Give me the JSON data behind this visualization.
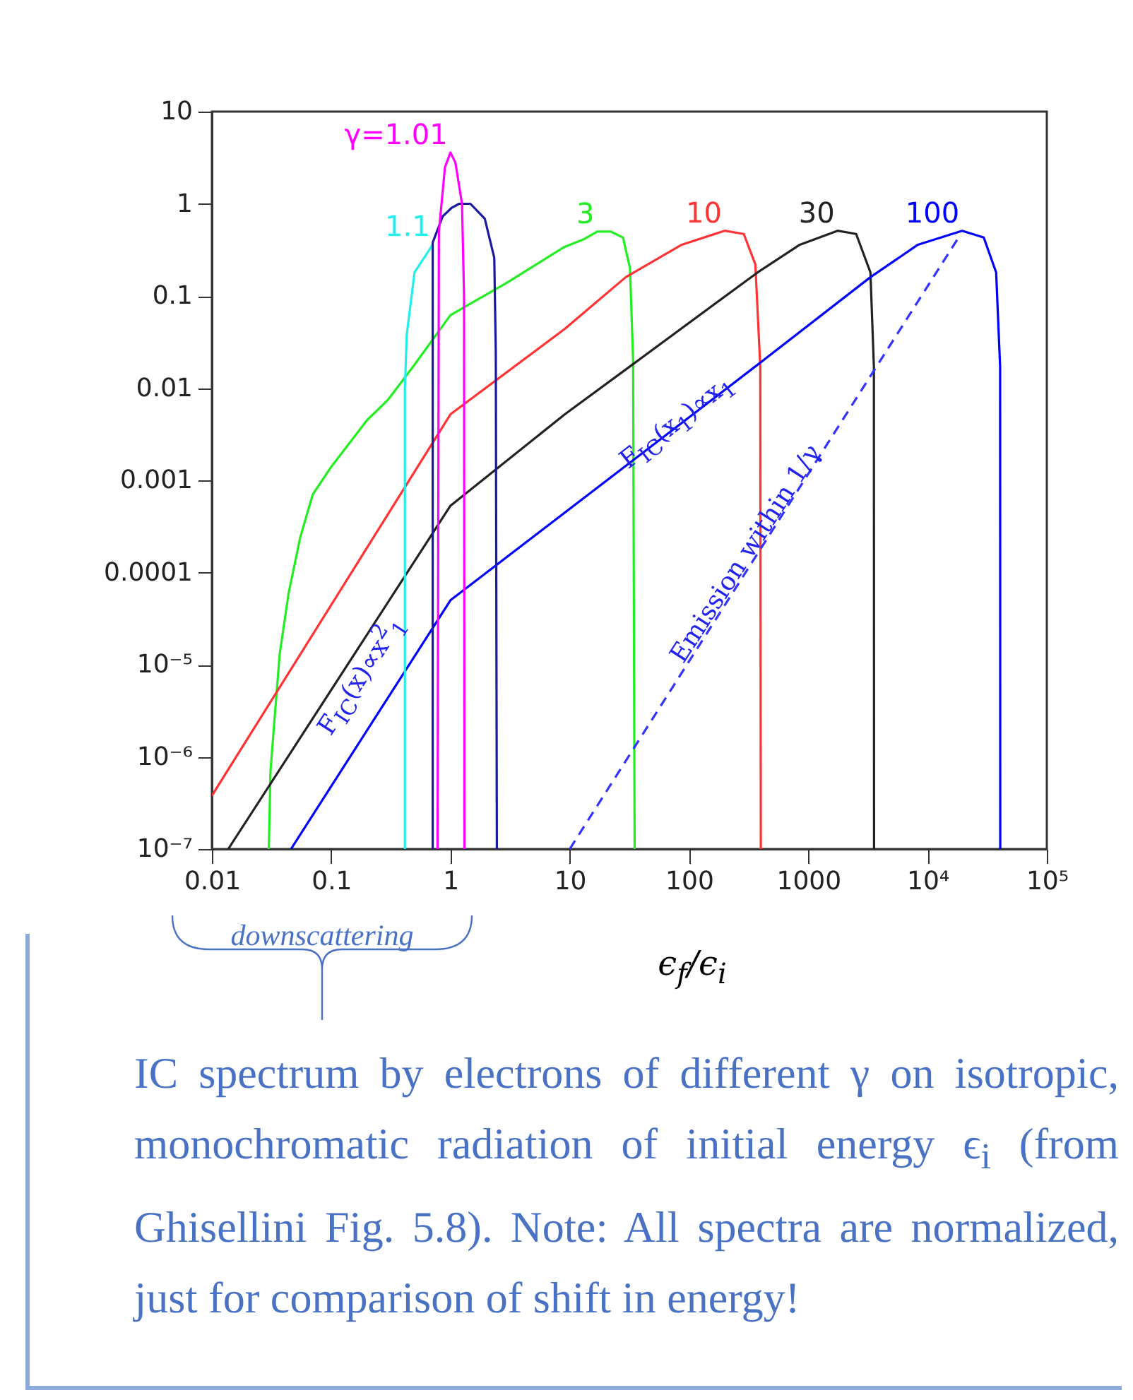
{
  "chart_data": {
    "type": "line",
    "xlabel": "ϵ$_{f}$/ϵ$_{i}$",
    "log": "xy",
    "xlim": [
      0.01,
      100000
    ],
    "ylim": [
      1e-07,
      10
    ],
    "xticks": [
      0.01,
      0.1,
      1,
      10,
      100,
      1000,
      {
        "value": 10000,
        "label": "10⁴"
      },
      {
        "value": 100000,
        "label": "10⁵"
      }
    ],
    "yticks": [
      {
        "value": 1e-07,
        "label": "10⁻⁷"
      },
      {
        "value": 1e-06,
        "label": "10⁻⁶"
      },
      {
        "value": 1e-05,
        "label": "10⁻⁵"
      },
      0.0001,
      0.001,
      0.01,
      0.1,
      1,
      10
    ],
    "series": [
      {
        "name": "3",
        "color": "#22ee22",
        "x": [
          0.03,
          0.031,
          0.033,
          0.037,
          0.044,
          0.055,
          0.07,
          0.1,
          0.2,
          0.3,
          0.5,
          1,
          3,
          9,
          13,
          17,
          22,
          28,
          32,
          34,
          35
        ],
        "values": [
          1e-07,
          7e-07,
          2e-06,
          1.3e-05,
          6e-05,
          0.00024,
          0.0007,
          0.0014,
          0.0045,
          0.0075,
          0.018,
          0.062,
          0.14,
          0.34,
          0.41,
          0.5,
          0.5,
          0.43,
          0.2,
          0.02,
          1e-07
        ]
      },
      {
        "name": "10",
        "color": "#ff3333",
        "x": [
          0.01,
          1,
          9.1,
          29.5,
          87,
          199,
          288,
          360,
          396,
          400
        ],
        "values": [
          3.8e-07,
          0.0052,
          0.044,
          0.16,
          0.36,
          0.51,
          0.47,
          0.22,
          0.017,
          1e-07
        ]
      },
      {
        "name": "30",
        "color": "#222222",
        "x": [
          0.0137,
          1,
          9.1,
          35.5,
          376,
          850,
          1760,
          2520,
          3320,
          3550,
          3560
        ],
        "values": [
          1e-07,
          0.00053,
          0.0052,
          0.019,
          0.18,
          0.36,
          0.51,
          0.47,
          0.18,
          0.017,
          1e-07
        ]
      },
      {
        "name": "100",
        "color": "#0000ff",
        "x": [
          0.046,
          1,
          398,
          3320,
          8300,
          19500,
          29600,
          37600,
          40600,
          40700
        ],
        "values": [
          1e-07,
          5e-05,
          0.019,
          0.16,
          0.36,
          0.51,
          0.43,
          0.18,
          0.017,
          1e-07
        ]
      },
      {
        "color": "#3333ff",
        "line_style": "dashed",
        "x": [
          10,
          19000
        ],
        "values": [
          1e-07,
          0.47
        ]
      },
      {
        "name": "1.1",
        "color": "#22eeee",
        "x": [
          0.415,
          0.415,
          0.43,
          0.5,
          0.71
        ],
        "values": [
          1e-07,
          0.01,
          0.038,
          0.18,
          0.36
        ]
      },
      {
        "color": "#1a1aa0",
        "x": [
          0.71,
          0.71,
          0.86,
          1.02,
          1.18,
          1.47,
          1.94,
          2.33,
          2.4,
          2.45
        ],
        "values": [
          1e-07,
          0.38,
          0.73,
          0.9,
          1,
          1,
          0.69,
          0.26,
          0.024,
          1e-07
        ]
      },
      {
        "name": "γ=1.01",
        "color": "#ff00ff",
        "x": [
          0.78,
          0.8,
          0.9,
          1,
          1.1,
          1.25,
          1.3,
          1.31
        ],
        "values": [
          1e-07,
          0.5,
          2.5,
          3.6,
          2.8,
          1,
          0.1,
          1e-07
        ]
      }
    ],
    "annotations": [
      "F$_{IC}$(x)∝x$^{2}$$_{1}$",
      "F$_{IC}$(x$_{1}$)∝x$_{1}$",
      "Emission within 1/γ",
      "downscattering",
      "IC spectrum by electrons of different γ on isotropic, monochromatic radiation of initial energy ϵ$_{i}$ (from Ghisellini Fig. 5.8). Note: All spectra are normalized, just for comparison of shift in energy!"
    ]
  }
}
